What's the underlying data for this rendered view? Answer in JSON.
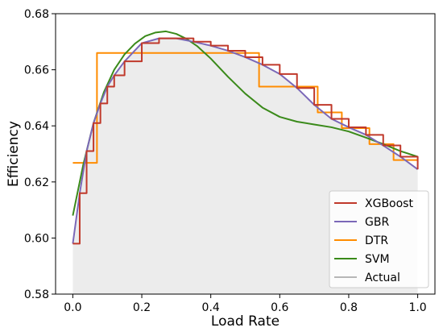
{
  "chart_data": {
    "type": "line",
    "xlabel": "Load Rate",
    "ylabel": "Efficiency",
    "xlim": [
      -0.05,
      1.05
    ],
    "ylim": [
      0.58,
      0.68
    ],
    "xticks": [
      0.0,
      0.2,
      0.4,
      0.6,
      0.8,
      1.0
    ],
    "xtick_labels": [
      "0.0",
      "0.2",
      "0.4",
      "0.6",
      "0.8",
      "1.0"
    ],
    "yticks": [
      0.58,
      0.6,
      0.62,
      0.64,
      0.66,
      0.68
    ],
    "ytick_labels": [
      "0.58",
      "0.60",
      "0.62",
      "0.64",
      "0.66",
      "0.68"
    ],
    "grid": false,
    "legend_position": "lower-right",
    "shaded_area_under": "Actual",
    "series": [
      {
        "name": "XGBoost",
        "color": "#c0392b",
        "style": "step-noisy",
        "x": [
          0.0,
          0.02,
          0.04,
          0.06,
          0.08,
          0.1,
          0.12,
          0.15,
          0.2,
          0.25,
          0.3,
          0.35,
          0.4,
          0.45,
          0.5,
          0.55,
          0.6,
          0.65,
          0.7,
          0.75,
          0.8,
          0.85,
          0.9,
          0.95,
          1.0
        ],
        "y": [
          0.598,
          0.616,
          0.631,
          0.641,
          0.648,
          0.654,
          0.658,
          0.663,
          0.6695,
          0.6712,
          0.6712,
          0.67,
          0.6686,
          0.6668,
          0.6645,
          0.6618,
          0.6585,
          0.6535,
          0.6475,
          0.6425,
          0.6395,
          0.6368,
          0.633,
          0.629,
          0.6245
        ]
      },
      {
        "name": "GBR",
        "color": "#7b68b8",
        "style": "line",
        "x": [
          0.0,
          0.02,
          0.04,
          0.06,
          0.08,
          0.1,
          0.12,
          0.15,
          0.2,
          0.25,
          0.3,
          0.35,
          0.4,
          0.45,
          0.5,
          0.55,
          0.6,
          0.65,
          0.7,
          0.75,
          0.8,
          0.85,
          0.9,
          0.95,
          1.0
        ],
        "y": [
          0.598,
          0.616,
          0.631,
          0.641,
          0.648,
          0.654,
          0.658,
          0.663,
          0.6695,
          0.6712,
          0.6712,
          0.67,
          0.6686,
          0.6668,
          0.6645,
          0.6618,
          0.6585,
          0.6535,
          0.6475,
          0.6425,
          0.6395,
          0.6368,
          0.633,
          0.629,
          0.6245
        ]
      },
      {
        "name": "DTR",
        "color": "#ff8c00",
        "style": "step",
        "x": [
          0.0,
          0.07,
          0.07,
          0.54,
          0.54,
          0.71,
          0.71,
          0.78,
          0.78,
          0.86,
          0.86,
          0.93,
          0.93,
          1.0
        ],
        "y": [
          0.6268,
          0.6268,
          0.666,
          0.666,
          0.654,
          0.654,
          0.6448,
          0.6448,
          0.6392,
          0.6392,
          0.6335,
          0.6335,
          0.6278,
          0.6278
        ]
      },
      {
        "name": "SVM",
        "color": "#3a8a1a",
        "style": "line",
        "x": [
          0.0,
          0.03,
          0.06,
          0.09,
          0.12,
          0.15,
          0.18,
          0.21,
          0.24,
          0.27,
          0.3,
          0.33,
          0.36,
          0.4,
          0.45,
          0.5,
          0.55,
          0.6,
          0.65,
          0.7,
          0.75,
          0.8,
          0.85,
          0.9,
          0.95,
          1.0
        ],
        "y": [
          0.608,
          0.626,
          0.641,
          0.652,
          0.66,
          0.6655,
          0.6693,
          0.672,
          0.6733,
          0.6737,
          0.6728,
          0.671,
          0.6685,
          0.664,
          0.6575,
          0.6515,
          0.6465,
          0.6432,
          0.6415,
          0.6405,
          0.6395,
          0.638,
          0.6358,
          0.6335,
          0.631,
          0.629
        ]
      },
      {
        "name": "Actual",
        "color": "#a0a0a0",
        "style": "line",
        "x": [
          0.0,
          0.02,
          0.04,
          0.06,
          0.08,
          0.1,
          0.12,
          0.15,
          0.2,
          0.25,
          0.3,
          0.35,
          0.4,
          0.45,
          0.5,
          0.55,
          0.6,
          0.65,
          0.7,
          0.75,
          0.8,
          0.85,
          0.9,
          0.95,
          1.0
        ],
        "y": [
          0.598,
          0.616,
          0.631,
          0.641,
          0.648,
          0.654,
          0.658,
          0.663,
          0.6695,
          0.6712,
          0.6712,
          0.67,
          0.6686,
          0.6668,
          0.6645,
          0.6618,
          0.6585,
          0.6535,
          0.6475,
          0.6425,
          0.6395,
          0.6368,
          0.633,
          0.629,
          0.6245
        ]
      }
    ]
  }
}
